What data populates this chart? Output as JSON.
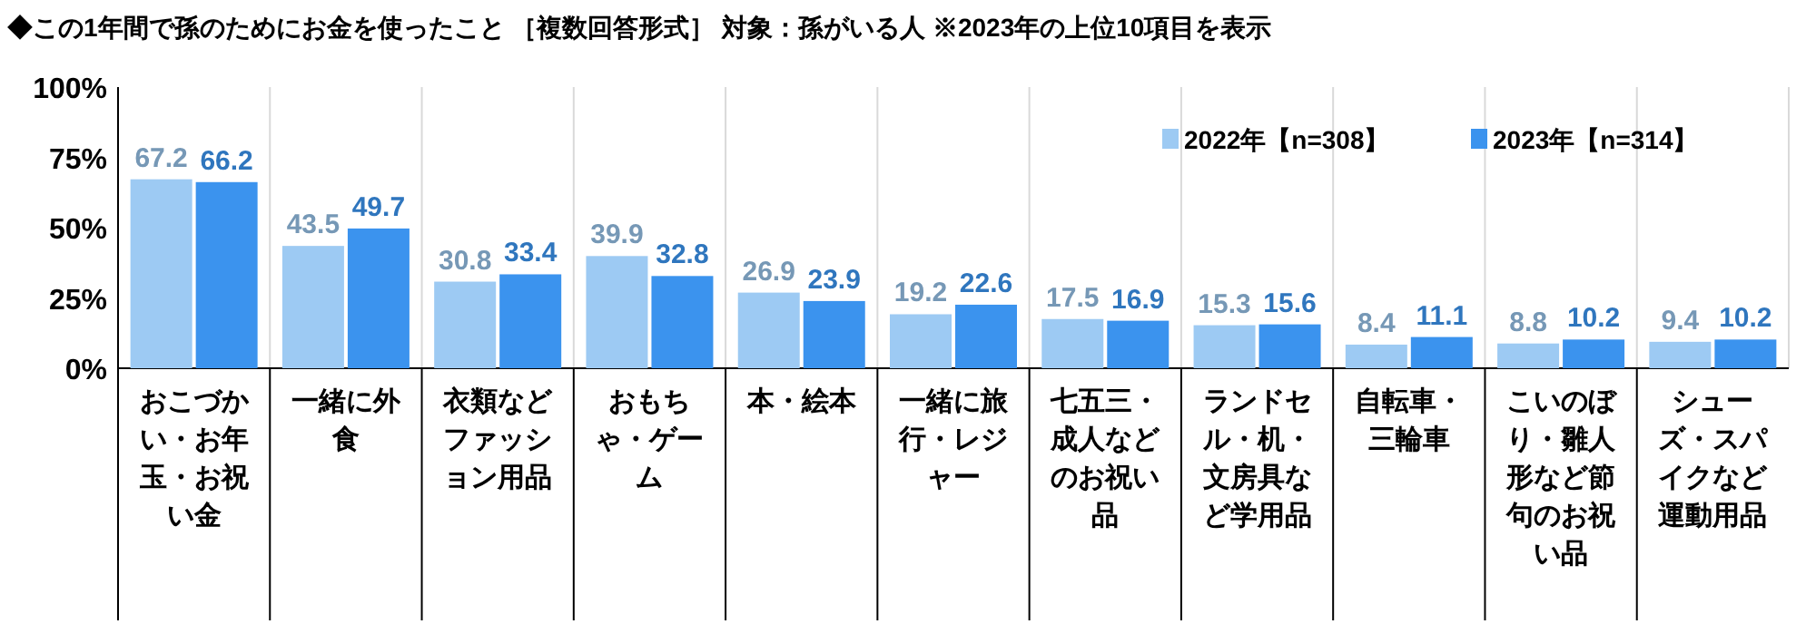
{
  "chart_data": {
    "type": "bar",
    "title": "◆この1年間で孫のためにお金を使ったこと ［複数回答形式］ 対象：孫がいる人 ※2023年の上位10項目を表示",
    "categories": [
      "おこづかい・お年玉・お祝い金",
      "一緒に外食",
      "衣類などファッション用品",
      "おもちゃ・ゲーム",
      "本・絵本",
      "一緒に旅行・レジャー",
      "七五三・成人などのお祝い品",
      "ランドセル・机・文房具など学用品",
      "自転車・三輪車",
      "こいのぼり・雛人形など節句のお祝い品",
      "シューズ・スパイクなど運動用品"
    ],
    "series": [
      {
        "name": "2022年【n=308】",
        "color": "#9dcaf3",
        "values": [
          67.2,
          43.5,
          30.8,
          39.9,
          26.9,
          19.2,
          17.5,
          15.3,
          8.4,
          8.8,
          9.4
        ]
      },
      {
        "name": "2023年【n=314】",
        "color": "#3b93ee",
        "values": [
          66.2,
          49.7,
          33.4,
          32.8,
          23.9,
          22.6,
          16.9,
          15.6,
          11.1,
          10.2,
          10.2
        ]
      }
    ],
    "ylim": [
      0,
      100
    ],
    "yticks": [
      {
        "value": 0,
        "label": "0%"
      },
      {
        "value": 25,
        "label": "25%"
      },
      {
        "value": 50,
        "label": "50%"
      },
      {
        "value": 75,
        "label": "75%"
      },
      {
        "value": 100,
        "label": "100%"
      }
    ],
    "grid": "x",
    "legend": "top right",
    "data_labels": true
  }
}
